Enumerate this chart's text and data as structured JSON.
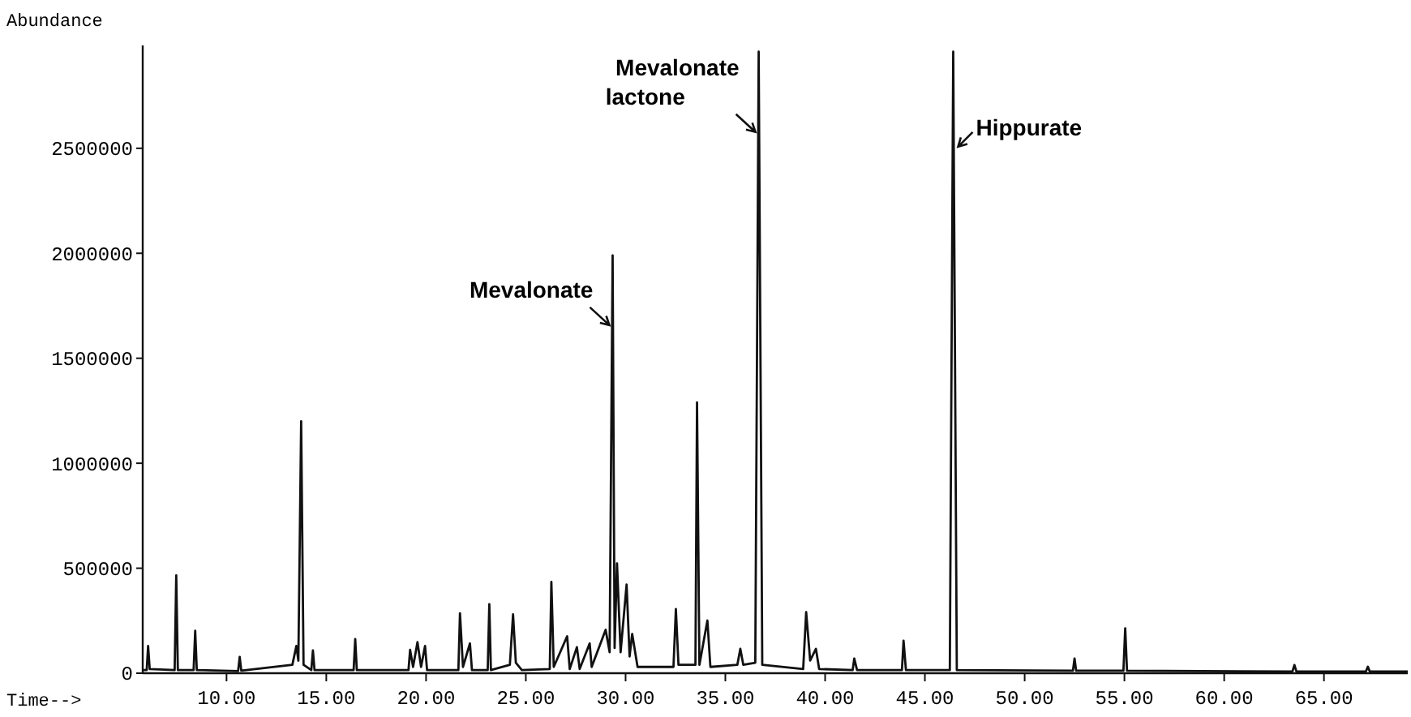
{
  "chart_data": {
    "type": "line",
    "xlabel": "Time-->",
    "ylabel": "Abundance",
    "xlim": [
      5.8,
      69.2
    ],
    "ylim": [
      0,
      2990000
    ],
    "xticks": [
      {
        "value": 10,
        "label": "10.00"
      },
      {
        "value": 15,
        "label": "15.00"
      },
      {
        "value": 20,
        "label": "20.00"
      },
      {
        "value": 25,
        "label": "25.00"
      },
      {
        "value": 30,
        "label": "30.00"
      },
      {
        "value": 35,
        "label": "35.00"
      },
      {
        "value": 40,
        "label": "40.00"
      },
      {
        "value": 45,
        "label": "45.00"
      },
      {
        "value": 50,
        "label": "50.00"
      },
      {
        "value": 55,
        "label": "55.00"
      },
      {
        "value": 60,
        "label": "60.00"
      },
      {
        "value": 65,
        "label": "65.00"
      }
    ],
    "yticks": [
      0,
      500000,
      1000000,
      1500000,
      2000000,
      2500000
    ],
    "grid": false,
    "marker": "none",
    "line_style": "solid",
    "annotations": [
      {
        "text": "Mevalonate",
        "x": 29.35,
        "y": 1650000
      },
      {
        "text": "Mevalonate\nlactone",
        "x": 36.67,
        "y": 2570000
      },
      {
        "text": "Hippurate",
        "x": 46.42,
        "y": 2500000
      }
    ],
    "series": [
      {
        "color": "#111111",
        "x": [
          5.8,
          6.0,
          6.07,
          6.15,
          7.4,
          7.48,
          7.56,
          8.35,
          8.43,
          8.51,
          10.58,
          10.66,
          10.74,
          13.3,
          13.5,
          13.6,
          13.74,
          13.86,
          14.25,
          14.33,
          14.41,
          16.37,
          16.45,
          16.53,
          19.12,
          19.2,
          19.35,
          19.57,
          19.75,
          19.95,
          20.05,
          21.62,
          21.7,
          21.85,
          22.2,
          22.3,
          23.09,
          23.17,
          23.25,
          24.2,
          24.36,
          24.5,
          24.8,
          26.2,
          26.28,
          26.4,
          27.07,
          27.2,
          27.56,
          27.7,
          28.2,
          28.3,
          29.0,
          29.2,
          29.35,
          29.45,
          29.57,
          29.75,
          30.05,
          30.2,
          30.33,
          30.6,
          32.4,
          32.52,
          32.65,
          33.5,
          33.58,
          33.7,
          34.1,
          34.25,
          35.6,
          35.75,
          35.9,
          36.5,
          36.67,
          36.85,
          38.9,
          39.05,
          39.25,
          39.54,
          39.7,
          41.38,
          41.46,
          41.6,
          43.85,
          43.93,
          44.05,
          46.25,
          46.42,
          46.6,
          52.42,
          52.5,
          52.58,
          54.95,
          55.04,
          55.13,
          63.42,
          63.52,
          63.62,
          67.1,
          67.2,
          67.3,
          69.2
        ],
        "values": [
          15000,
          15000,
          130000,
          20000,
          15000,
          466000,
          15000,
          15000,
          202000,
          15000,
          10000,
          78000,
          12000,
          40000,
          130000,
          60000,
          1200000,
          40000,
          15000,
          109000,
          15000,
          15000,
          163000,
          15000,
          15000,
          111000,
          30000,
          148000,
          30000,
          130000,
          15000,
          15000,
          285000,
          30000,
          142000,
          15000,
          15000,
          329000,
          15000,
          40000,
          280000,
          50000,
          15000,
          20000,
          435000,
          30000,
          176000,
          20000,
          124000,
          20000,
          142000,
          30000,
          207000,
          100000,
          1990000,
          120000,
          523000,
          100000,
          422000,
          80000,
          187000,
          30000,
          30000,
          306000,
          40000,
          40000,
          1290000,
          40000,
          251000,
          30000,
          40000,
          116000,
          40000,
          50000,
          2960000,
          40000,
          20000,
          291000,
          60000,
          116000,
          20000,
          15000,
          70000,
          15000,
          15000,
          155000,
          15000,
          15000,
          2960000,
          15000,
          12000,
          70000,
          12000,
          12000,
          214000,
          12000,
          8000,
          39000,
          8000,
          8000,
          31000,
          8000,
          8000
        ]
      }
    ]
  }
}
